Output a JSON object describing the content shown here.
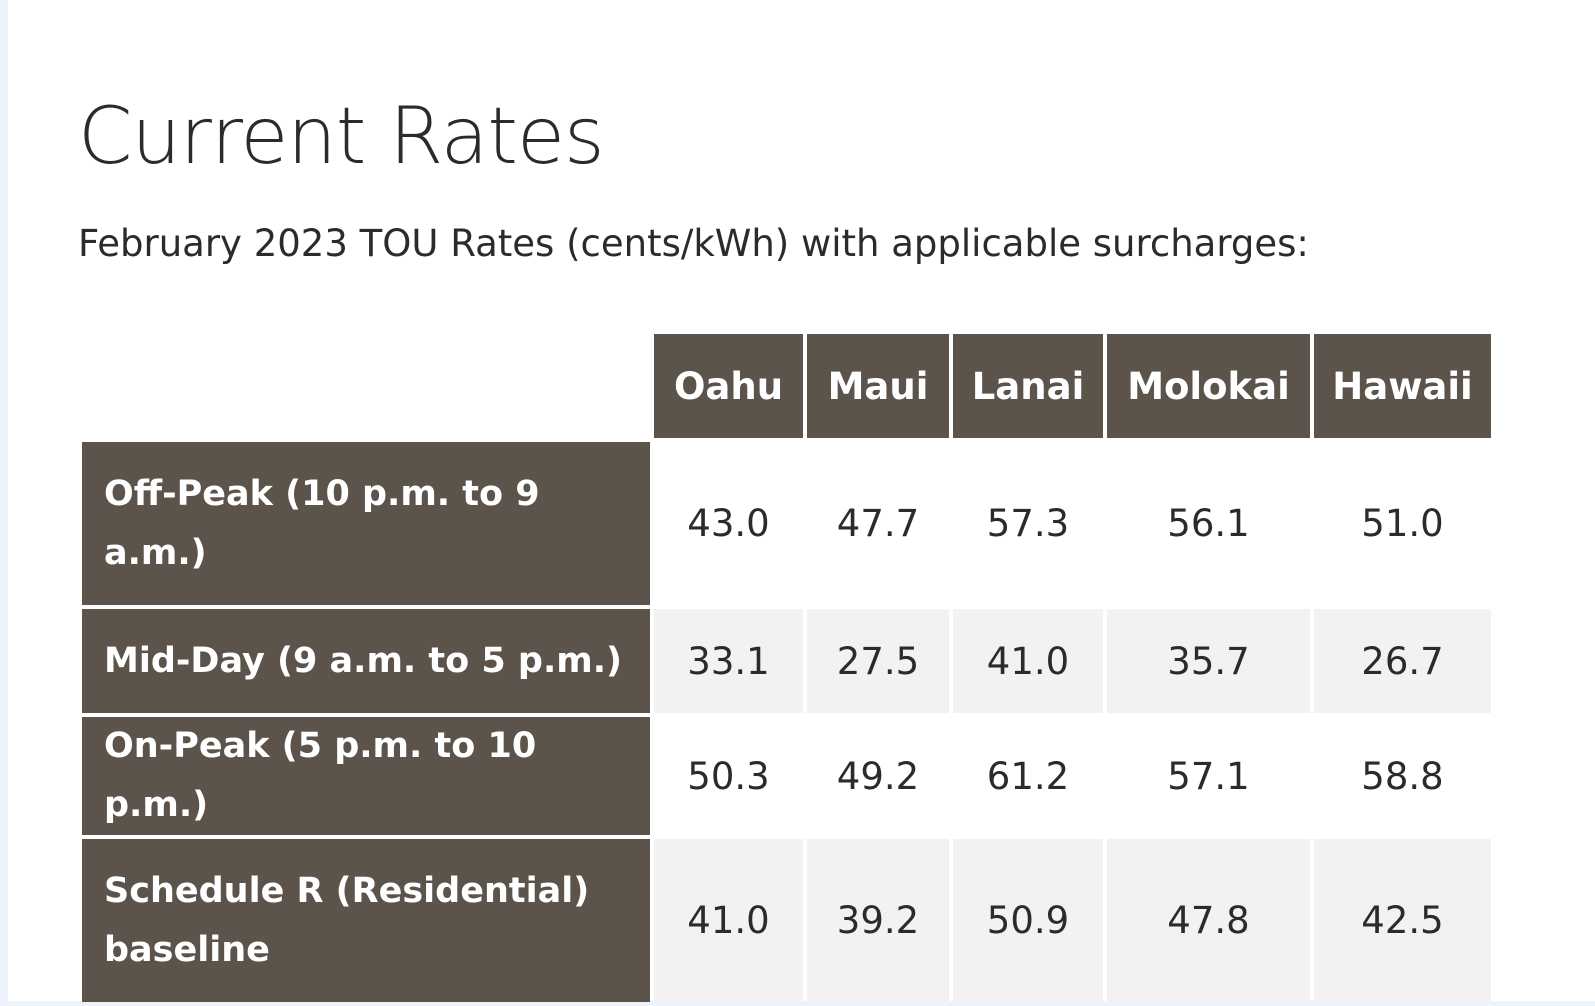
{
  "heading": {
    "title": "Current Rates",
    "subtitle": "February 2023 TOU Rates (cents/kWh) with applicable surcharges:"
  },
  "table": {
    "columns": [
      "Oahu",
      "Maui",
      "Lanai",
      "Molokai",
      "Hawaii"
    ],
    "rows": [
      {
        "label": "Off-Peak (10 p.m. to 9 a.m.)",
        "values": [
          "43.0",
          "47.7",
          "57.3",
          "56.1",
          "51.0"
        ]
      },
      {
        "label": "Mid-Day (9 a.m. to 5 p.m.)",
        "values": [
          "33.1",
          "27.5",
          "41.0",
          "35.7",
          "26.7"
        ]
      },
      {
        "label": "On-Peak (5 p.m. to 10 p.m.)",
        "values": [
          "50.3",
          "49.2",
          "61.2",
          "57.1",
          "58.8"
        ]
      },
      {
        "label": "Schedule R (Residential) baseline",
        "values": [
          "41.0",
          "39.2",
          "50.9",
          "47.8",
          "42.5"
        ]
      }
    ]
  },
  "colors": {
    "header_bg": "#5c534b",
    "header_text": "#ffffff",
    "alt_row_bg": "#f3f2f1",
    "page_bg": "#ffffff"
  }
}
